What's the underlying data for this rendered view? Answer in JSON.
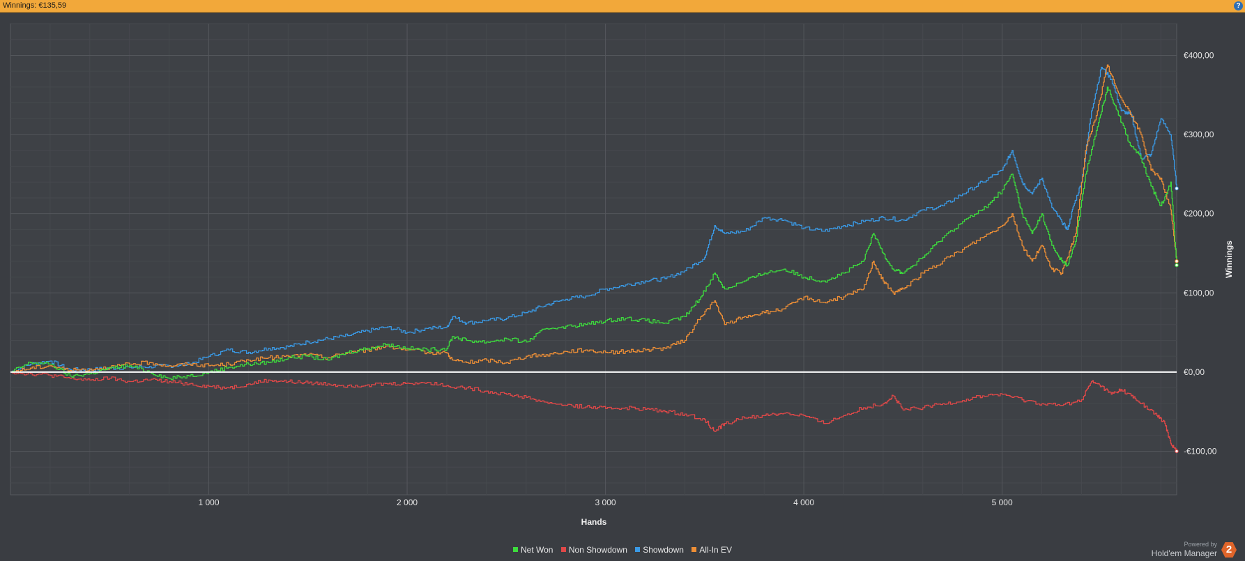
{
  "header": {
    "title": "Winnings: €135,59",
    "help_label": "?"
  },
  "brand": {
    "powered_label": "Powered by",
    "name": "Hold'em Manager",
    "logo_text": "2"
  },
  "colors": {
    "background": "#3a3d42",
    "plot_background": "#3e4146",
    "grid": "#54575c",
    "zero_line": "#ffffff",
    "net_won": "#3ddc3d",
    "non_showdown": "#e04848",
    "showdown": "#3a9ae6",
    "all_in_ev": "#ee8f36"
  },
  "chart_data": {
    "type": "line",
    "xlabel": "Hands",
    "ylabel": "Winnings",
    "xlim": [
      0,
      5880
    ],
    "ylim": [
      -155,
      440
    ],
    "x_ticks": [
      1000,
      2000,
      3000,
      4000,
      5000
    ],
    "x_tick_labels": [
      "1 000",
      "2 000",
      "3 000",
      "4 000",
      "5 000"
    ],
    "y_ticks": [
      -100,
      0,
      100,
      200,
      300,
      400
    ],
    "y_tick_labels": [
      "-€100,00",
      "€0,00",
      "€100,00",
      "€200,00",
      "€300,00",
      "€400,00"
    ],
    "grid": true,
    "legend_position": "bottom",
    "series": [
      {
        "name": "Showdown",
        "color": "#3a9ae6",
        "points": [
          [
            0,
            0
          ],
          [
            100,
            10
          ],
          [
            200,
            14
          ],
          [
            300,
            3
          ],
          [
            400,
            3
          ],
          [
            500,
            5
          ],
          [
            600,
            6
          ],
          [
            700,
            7
          ],
          [
            800,
            8
          ],
          [
            900,
            10
          ],
          [
            1000,
            20
          ],
          [
            1100,
            28
          ],
          [
            1200,
            25
          ],
          [
            1300,
            30
          ],
          [
            1400,
            32
          ],
          [
            1500,
            38
          ],
          [
            1600,
            42
          ],
          [
            1700,
            46
          ],
          [
            1800,
            52
          ],
          [
            1900,
            57
          ],
          [
            2000,
            50
          ],
          [
            2100,
            55
          ],
          [
            2200,
            57
          ],
          [
            2230,
            70
          ],
          [
            2300,
            62
          ],
          [
            2400,
            65
          ],
          [
            2500,
            68
          ],
          [
            2600,
            75
          ],
          [
            2700,
            85
          ],
          [
            2800,
            92
          ],
          [
            2900,
            96
          ],
          [
            3000,
            105
          ],
          [
            3100,
            110
          ],
          [
            3200,
            115
          ],
          [
            3300,
            118
          ],
          [
            3400,
            128
          ],
          [
            3500,
            145
          ],
          [
            3550,
            185
          ],
          [
            3600,
            175
          ],
          [
            3700,
            178
          ],
          [
            3800,
            195
          ],
          [
            3900,
            192
          ],
          [
            4000,
            182
          ],
          [
            4100,
            178
          ],
          [
            4200,
            185
          ],
          [
            4300,
            190
          ],
          [
            4400,
            195
          ],
          [
            4500,
            192
          ],
          [
            4600,
            205
          ],
          [
            4700,
            210
          ],
          [
            4800,
            225
          ],
          [
            4900,
            240
          ],
          [
            5000,
            255
          ],
          [
            5050,
            280
          ],
          [
            5100,
            240
          ],
          [
            5150,
            225
          ],
          [
            5200,
            245
          ],
          [
            5250,
            208
          ],
          [
            5300,
            190
          ],
          [
            5330,
            180
          ],
          [
            5360,
            210
          ],
          [
            5400,
            240
          ],
          [
            5450,
            330
          ],
          [
            5500,
            385
          ],
          [
            5550,
            370
          ],
          [
            5600,
            330
          ],
          [
            5650,
            325
          ],
          [
            5700,
            270
          ],
          [
            5750,
            275
          ],
          [
            5800,
            320
          ],
          [
            5850,
            300
          ],
          [
            5880,
            232
          ]
        ]
      },
      {
        "name": "Net Won",
        "color": "#3ddc3d",
        "points": [
          [
            0,
            0
          ],
          [
            100,
            12
          ],
          [
            200,
            10
          ],
          [
            300,
            -5
          ],
          [
            400,
            -2
          ],
          [
            500,
            5
          ],
          [
            600,
            8
          ],
          [
            700,
            0
          ],
          [
            800,
            -8
          ],
          [
            900,
            -5
          ],
          [
            1000,
            0
          ],
          [
            1100,
            6
          ],
          [
            1200,
            10
          ],
          [
            1300,
            12
          ],
          [
            1400,
            18
          ],
          [
            1500,
            20
          ],
          [
            1600,
            15
          ],
          [
            1700,
            25
          ],
          [
            1800,
            30
          ],
          [
            1900,
            35
          ],
          [
            2000,
            30
          ],
          [
            2100,
            28
          ],
          [
            2200,
            30
          ],
          [
            2230,
            45
          ],
          [
            2300,
            40
          ],
          [
            2400,
            38
          ],
          [
            2500,
            42
          ],
          [
            2600,
            38
          ],
          [
            2700,
            55
          ],
          [
            2800,
            58
          ],
          [
            2900,
            60
          ],
          [
            3000,
            65
          ],
          [
            3100,
            68
          ],
          [
            3200,
            65
          ],
          [
            3300,
            62
          ],
          [
            3400,
            70
          ],
          [
            3480,
            95
          ],
          [
            3550,
            125
          ],
          [
            3600,
            105
          ],
          [
            3700,
            115
          ],
          [
            3800,
            125
          ],
          [
            3900,
            130
          ],
          [
            4000,
            120
          ],
          [
            4100,
            115
          ],
          [
            4200,
            125
          ],
          [
            4300,
            140
          ],
          [
            4350,
            175
          ],
          [
            4400,
            150
          ],
          [
            4450,
            130
          ],
          [
            4500,
            125
          ],
          [
            4600,
            145
          ],
          [
            4700,
            170
          ],
          [
            4800,
            190
          ],
          [
            4900,
            205
          ],
          [
            5000,
            230
          ],
          [
            5050,
            250
          ],
          [
            5100,
            200
          ],
          [
            5150,
            175
          ],
          [
            5200,
            200
          ],
          [
            5250,
            160
          ],
          [
            5300,
            140
          ],
          [
            5330,
            135
          ],
          [
            5370,
            165
          ],
          [
            5420,
            250
          ],
          [
            5480,
            310
          ],
          [
            5530,
            360
          ],
          [
            5580,
            330
          ],
          [
            5640,
            290
          ],
          [
            5700,
            270
          ],
          [
            5750,
            235
          ],
          [
            5800,
            210
          ],
          [
            5850,
            240
          ],
          [
            5880,
            135
          ]
        ]
      },
      {
        "name": "All-In EV",
        "color": "#ee8f36",
        "points": [
          [
            0,
            0
          ],
          [
            100,
            5
          ],
          [
            200,
            8
          ],
          [
            300,
            2
          ],
          [
            400,
            4
          ],
          [
            500,
            6
          ],
          [
            600,
            10
          ],
          [
            700,
            12
          ],
          [
            800,
            8
          ],
          [
            900,
            10
          ],
          [
            1000,
            8
          ],
          [
            1100,
            10
          ],
          [
            1200,
            15
          ],
          [
            1300,
            18
          ],
          [
            1400,
            20
          ],
          [
            1500,
            22
          ],
          [
            1600,
            18
          ],
          [
            1700,
            25
          ],
          [
            1800,
            28
          ],
          [
            1900,
            33
          ],
          [
            2000,
            28
          ],
          [
            2100,
            25
          ],
          [
            2200,
            24
          ],
          [
            2230,
            15
          ],
          [
            2300,
            12
          ],
          [
            2400,
            15
          ],
          [
            2500,
            12
          ],
          [
            2600,
            20
          ],
          [
            2700,
            22
          ],
          [
            2800,
            26
          ],
          [
            2900,
            28
          ],
          [
            3000,
            25
          ],
          [
            3100,
            26
          ],
          [
            3200,
            28
          ],
          [
            3300,
            30
          ],
          [
            3400,
            40
          ],
          [
            3480,
            70
          ],
          [
            3550,
            90
          ],
          [
            3600,
            60
          ],
          [
            3700,
            70
          ],
          [
            3800,
            75
          ],
          [
            3900,
            80
          ],
          [
            4000,
            95
          ],
          [
            4100,
            88
          ],
          [
            4200,
            95
          ],
          [
            4300,
            105
          ],
          [
            4350,
            140
          ],
          [
            4400,
            115
          ],
          [
            4450,
            100
          ],
          [
            4500,
            105
          ],
          [
            4600,
            125
          ],
          [
            4700,
            140
          ],
          [
            4800,
            155
          ],
          [
            4900,
            170
          ],
          [
            5000,
            185
          ],
          [
            5050,
            200
          ],
          [
            5100,
            160
          ],
          [
            5150,
            140
          ],
          [
            5200,
            160
          ],
          [
            5250,
            130
          ],
          [
            5300,
            125
          ],
          [
            5330,
            145
          ],
          [
            5370,
            175
          ],
          [
            5420,
            280
          ],
          [
            5480,
            330
          ],
          [
            5530,
            388
          ],
          [
            5580,
            355
          ],
          [
            5640,
            330
          ],
          [
            5700,
            300
          ],
          [
            5750,
            255
          ],
          [
            5800,
            245
          ],
          [
            5850,
            205
          ],
          [
            5880,
            140
          ]
        ]
      },
      {
        "name": "Non Showdown",
        "color": "#e04848",
        "points": [
          [
            0,
            0
          ],
          [
            100,
            -2
          ],
          [
            200,
            -4
          ],
          [
            300,
            -8
          ],
          [
            400,
            -10
          ],
          [
            500,
            -8
          ],
          [
            600,
            -12
          ],
          [
            700,
            -10
          ],
          [
            800,
            -12
          ],
          [
            900,
            -15
          ],
          [
            1000,
            -18
          ],
          [
            1100,
            -20
          ],
          [
            1200,
            -15
          ],
          [
            1300,
            -10
          ],
          [
            1400,
            -12
          ],
          [
            1500,
            -14
          ],
          [
            1600,
            -15
          ],
          [
            1700,
            -17
          ],
          [
            1800,
            -16
          ],
          [
            1900,
            -15
          ],
          [
            2000,
            -14
          ],
          [
            2100,
            -13
          ],
          [
            2200,
            -17
          ],
          [
            2300,
            -20
          ],
          [
            2400,
            -24
          ],
          [
            2500,
            -28
          ],
          [
            2600,
            -32
          ],
          [
            2700,
            -38
          ],
          [
            2800,
            -42
          ],
          [
            2900,
            -44
          ],
          [
            3000,
            -46
          ],
          [
            3100,
            -45
          ],
          [
            3200,
            -47
          ],
          [
            3300,
            -50
          ],
          [
            3400,
            -53
          ],
          [
            3500,
            -60
          ],
          [
            3550,
            -75
          ],
          [
            3600,
            -65
          ],
          [
            3700,
            -58
          ],
          [
            3800,
            -55
          ],
          [
            3900,
            -52
          ],
          [
            4000,
            -55
          ],
          [
            4100,
            -65
          ],
          [
            4200,
            -55
          ],
          [
            4300,
            -45
          ],
          [
            4400,
            -40
          ],
          [
            4450,
            -30
          ],
          [
            4500,
            -48
          ],
          [
            4600,
            -45
          ],
          [
            4700,
            -40
          ],
          [
            4800,
            -36
          ],
          [
            4900,
            -30
          ],
          [
            5000,
            -28
          ],
          [
            5100,
            -35
          ],
          [
            5200,
            -40
          ],
          [
            5300,
            -42
          ],
          [
            5400,
            -35
          ],
          [
            5450,
            -12
          ],
          [
            5500,
            -18
          ],
          [
            5550,
            -28
          ],
          [
            5600,
            -22
          ],
          [
            5650,
            -30
          ],
          [
            5700,
            -40
          ],
          [
            5780,
            -55
          ],
          [
            5820,
            -65
          ],
          [
            5850,
            -90
          ],
          [
            5880,
            -100
          ]
        ]
      }
    ]
  }
}
